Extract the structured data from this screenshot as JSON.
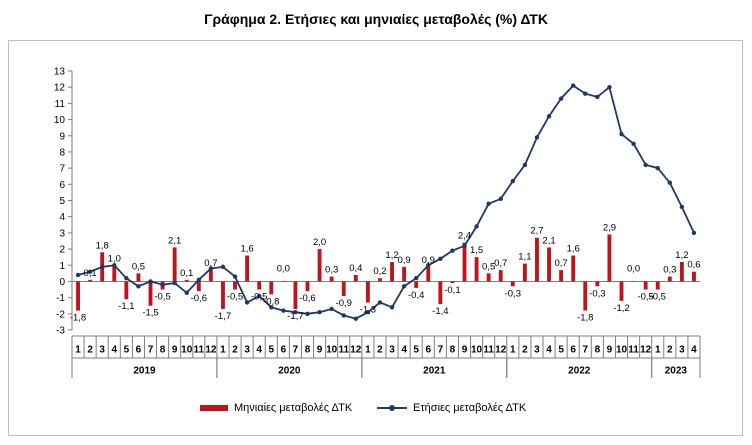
{
  "chart_data": {
    "type": "bar+line",
    "title": "Γράφημα 2. Ετήσιες και μηνιαίες μεταβολές (%) ΔΤΚ",
    "ylim": [
      -3,
      13
    ],
    "yticks": [
      -3,
      -2,
      -1,
      0,
      1,
      2,
      3,
      4,
      5,
      6,
      7,
      8,
      9,
      10,
      11,
      12,
      13
    ],
    "categories": [
      "1",
      "2",
      "3",
      "4",
      "5",
      "6",
      "7",
      "8",
      "9",
      "10",
      "11",
      "12",
      "1",
      "2",
      "3",
      "4",
      "5",
      "6",
      "7",
      "8",
      "9",
      "10",
      "11",
      "12",
      "1",
      "2",
      "3",
      "4",
      "5",
      "6",
      "7",
      "8",
      "9",
      "10",
      "11",
      "12",
      "1",
      "2",
      "3",
      "4",
      "5",
      "6",
      "7",
      "8",
      "9",
      "10",
      "11",
      "12",
      "1",
      "2",
      "3",
      "4"
    ],
    "years": [
      {
        "label": "2019",
        "start": 0,
        "end": 12
      },
      {
        "label": "2020",
        "start": 12,
        "end": 24
      },
      {
        "label": "2021",
        "start": 24,
        "end": 36
      },
      {
        "label": "2022",
        "start": 36,
        "end": 48
      },
      {
        "label": "2023",
        "start": 48,
        "end": 52
      }
    ],
    "series": [
      {
        "name": "Μηνιαίες μεταβολές ΔΤΚ",
        "type": "bar",
        "color": "#c0141c",
        "values": [
          -1.8,
          0.1,
          1.8,
          1.0,
          -1.1,
          0.5,
          -1.5,
          -0.5,
          2.1,
          0.1,
          -0.6,
          0.7,
          -1.7,
          -0.5,
          1.6,
          -0.5,
          -0.8,
          0.0,
          -1.7,
          -0.6,
          2.0,
          0.3,
          -0.9,
          0.4,
          -1.3,
          0.2,
          1.2,
          0.9,
          -0.4,
          0.9,
          -1.4,
          -0.1,
          2.4,
          1.5,
          0.5,
          0.7,
          -0.3,
          1.1,
          2.7,
          2.1,
          0.7,
          1.6,
          -1.8,
          -0.3,
          2.9,
          -1.2,
          0.0,
          -0.5,
          -0.5,
          0.3,
          1.2,
          0.6
        ]
      },
      {
        "name": "Ετήσιες μεταβολές ΔΤΚ",
        "type": "line",
        "color": "#1f3864",
        "values": [
          0.4,
          0.6,
          0.9,
          1.0,
          0.2,
          -0.3,
          0.0,
          -0.2,
          -0.1,
          -0.7,
          0.1,
          0.8,
          0.9,
          0.3,
          -1.3,
          -0.9,
          -1.6,
          -1.8,
          -1.9,
          -2.0,
          -1.9,
          -1.7,
          -2.1,
          -2.3,
          -1.9,
          -1.3,
          -1.6,
          -0.3,
          0.2,
          1.0,
          1.4,
          1.9,
          2.2,
          3.4,
          4.8,
          5.1,
          6.2,
          7.2,
          8.9,
          10.2,
          11.3,
          12.1,
          11.6,
          11.4,
          12.0,
          9.1,
          8.5,
          7.2,
          7.0,
          6.1,
          4.6,
          3.0
        ]
      }
    ],
    "bar_labels": [
      "-1,8",
      "0,1",
      "1,8",
      "1,0",
      "-1,1",
      "0,5",
      "-1,5",
      "-0,5",
      "2,1",
      "0,1",
      "-0,6",
      "0,7",
      "-1,7",
      "-0,5",
      "1,6",
      "-0,5",
      "-0,8",
      "0,0",
      "-1,7",
      "-0,6",
      "2,0",
      "0,3",
      "-0,9",
      "0,4",
      "-1,3",
      "0,2",
      "1,2",
      "0,9",
      "-0,4",
      "0,9",
      "-1,4",
      "-0,1",
      "2,4",
      "1,5",
      "0,5",
      "0,7",
      "-0,3",
      "1,1",
      "2,7",
      "2,1",
      "0,7",
      "1,6",
      "-1,8",
      "-0,3",
      "2,9",
      "-1,2",
      "0,0",
      "-0,5",
      "-0,5",
      "0,3",
      "1,2",
      "0,6"
    ],
    "legend_position": "bottom",
    "grid": false
  },
  "legend": {
    "bar_label": "Μηνιαίες μεταβολές ΔΤΚ",
    "line_label": "Ετήσιες μεταβολές ΔΤΚ"
  }
}
